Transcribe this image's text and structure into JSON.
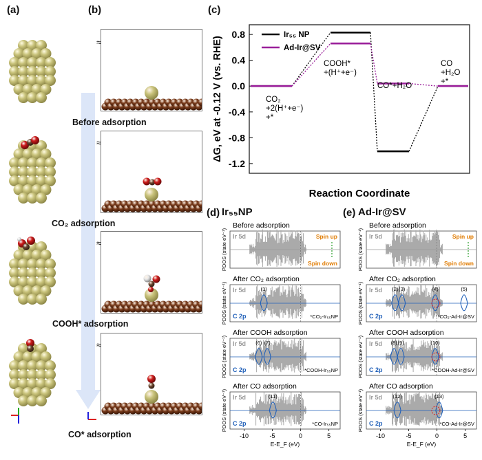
{
  "panel_labels": {
    "a": "(a)",
    "b": "(b)",
    "c": "(c)",
    "d": "(d)",
    "e": "(e)"
  },
  "stages": [
    {
      "caption": "Before adsorption"
    },
    {
      "caption": "CO₂ adsorption"
    },
    {
      "caption": "COOH* adsorption"
    },
    {
      "caption": "CO* adsorption"
    }
  ],
  "axis_break_mark": "≈",
  "colors": {
    "ir_atom": "#c8c27a",
    "ir_atom_dark": "#8e8848",
    "substrate": "#7a3c1c",
    "oxygen": "#cc1c1c",
    "carbon": "#6e4a33",
    "hydrogen": "#e8e8e8",
    "arrow": "#dce6f8",
    "ir55": "#000000",
    "adir": "#9a1f9a",
    "pdos_ir": "#aaaaaa",
    "pdos_c": "#1f5fb8",
    "spin": "#e07b00",
    "spin_arrow": "#2a9d2a",
    "circle": "#d22"
  },
  "chart_data": [
    {
      "type": "line",
      "title": "",
      "ylabel": "ΔG, eV at -0.12 V (vs. RHE)",
      "xlabel": "Reaction Coordinate",
      "ylim": [
        -1.35,
        0.95
      ],
      "yticks": [
        "0.8",
        "0.4",
        "0.0",
        "-0.4",
        "-0.8",
        "-1.2"
      ],
      "ytick_values": [
        0.8,
        0.4,
        0.0,
        -0.4,
        -0.8,
        -1.2
      ],
      "legend": [
        {
          "name": "Ir₅₅ NP",
          "color": "#000000"
        },
        {
          "name": "Ad-Ir@SV",
          "color": "#9a1f9a"
        }
      ],
      "steps": [
        {
          "label_lines": [
            "CO₂",
            "+2(H⁺+e⁻)",
            "+*"
          ]
        },
        {
          "label_lines": [
            "COOH*",
            "+(H⁺+e⁻)"
          ]
        },
        {
          "label_lines": [
            "CO*+H₂O"
          ]
        },
        {
          "label_lines": [
            "CO",
            "+H₂O",
            "+*"
          ]
        }
      ],
      "series": [
        {
          "name": "Ir₅₅ NP",
          "values": [
            0.0,
            0.83,
            -1.01,
            0.0
          ]
        },
        {
          "name": "Ad-Ir@SV",
          "values": [
            0.0,
            0.66,
            0.04,
            0.0
          ]
        }
      ]
    }
  ],
  "pdos": {
    "d": {
      "title": "Ir₅₅NP",
      "xlabel": "E-E_F (eV)",
      "ylabel": "PDOS (state eV⁻¹)",
      "xticks": [
        "-10",
        "-5",
        "0",
        "5"
      ],
      "xtick_values": [
        -10,
        -5,
        0,
        5
      ],
      "xlim": [
        -12.5,
        7
      ],
      "subpanels": [
        {
          "title": "Before adsorption",
          "ir_label": "Ir 5d",
          "c_label": "",
          "tag": "",
          "spin_up": "Spin up",
          "spin_down": "Spin down",
          "ann": []
        },
        {
          "title": "After CO₂ adsorption",
          "ir_label": "Ir 5d",
          "c_label": "C 2p",
          "tag": "*CO₂-Ir₅₅NP",
          "ann": [
            {
              "text": "(1)",
              "e": -6.5
            }
          ]
        },
        {
          "title": "After COOH adsorption",
          "ir_label": "Ir 5d",
          "c_label": "C 2p",
          "tag": "*COOH-Ir₅₅NP",
          "ann": [
            {
              "text": "(6)",
              "e": -7.4
            },
            {
              "text": "(7)",
              "e": -5.9
            }
          ]
        },
        {
          "title": "After CO adsorption",
          "ir_label": "Ir 5d",
          "c_label": "C 2p",
          "tag": "*CO-Ir₅₅NP",
          "ann": [
            {
              "text": "(11)",
              "e": -4.9
            }
          ]
        }
      ]
    },
    "e": {
      "title": "Ad-Ir@SV",
      "xlabel": "E-E_F (eV)",
      "ylabel": "PDOS (state eV⁻¹)",
      "xticks": [
        "-10",
        "-5",
        "0",
        "5"
      ],
      "xtick_values": [
        -10,
        -5,
        0,
        5
      ],
      "xlim": [
        -12.5,
        7
      ],
      "subpanels": [
        {
          "title": "Before adsorption",
          "ir_label": "Ir 5d",
          "c_label": "",
          "tag": "",
          "spin_up": "Spin up",
          "spin_down": "Spin down",
          "ann": []
        },
        {
          "title": "After CO₂ adsorption",
          "ir_label": "Ir 5d",
          "c_label": "C 2p",
          "tag": "*CO₂-Ad-Ir@SV",
          "ann": [
            {
              "text": "(2)",
              "e": -7.4
            },
            {
              "text": "(3)",
              "e": -6.2
            },
            {
              "text": "(4)",
              "e": -0.3
            },
            {
              "text": "(5)",
              "e": 4.8
            }
          ],
          "circle_e": -0.2
        },
        {
          "title": "After COOH adsorption",
          "ir_label": "Ir 5d",
          "c_label": "C 2p",
          "tag": "*COOH-Ad-Ir@SV",
          "ann": [
            {
              "text": "(8)",
              "e": -7.6
            },
            {
              "text": "(9)",
              "e": -6.4
            },
            {
              "text": "(10)",
              "e": -0.3
            }
          ],
          "circle_e": -0.2
        },
        {
          "title": "After CO adsorption",
          "ir_label": "Ir 5d",
          "c_label": "C 2p",
          "tag": "*CO-Ad-Ir@SV",
          "ann": [
            {
              "text": "(12)",
              "e": -7.0
            },
            {
              "text": "(13)",
              "e": 0.4
            }
          ],
          "circle_e": -0.2
        }
      ]
    }
  }
}
